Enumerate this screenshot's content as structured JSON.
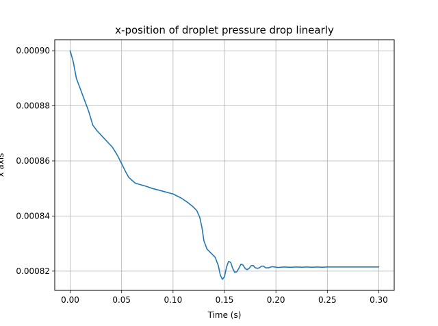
{
  "chart_data": {
    "type": "line",
    "title": "x-position of droplet pressure drop linearly",
    "xlabel": "Time (s)",
    "ylabel": "x axis",
    "xlim": [
      -0.015,
      0.315
    ],
    "ylim": [
      0.000813,
      0.000904
    ],
    "xticks": [
      0.0,
      0.05,
      0.1,
      0.15,
      0.2,
      0.25,
      0.3
    ],
    "xtick_labels": [
      "0.00",
      "0.05",
      "0.10",
      "0.15",
      "0.20",
      "0.25",
      "0.30"
    ],
    "yticks": [
      0.00082,
      0.00084,
      0.00086,
      0.00088,
      0.0009
    ],
    "ytick_labels": [
      "0.00082",
      "0.00084",
      "0.00086",
      "0.00088",
      "0.00090"
    ],
    "grid": true,
    "series": [
      {
        "color": "#1f77b4",
        "x": [
          0.0,
          0.003,
          0.006,
          0.009,
          0.013,
          0.018,
          0.022,
          0.026,
          0.031,
          0.036,
          0.041,
          0.046,
          0.05,
          0.054,
          0.057,
          0.06,
          0.063,
          0.067,
          0.072,
          0.08,
          0.09,
          0.1,
          0.108,
          0.114,
          0.119,
          0.123,
          0.126,
          0.128,
          0.13,
          0.133,
          0.137,
          0.141,
          0.144,
          0.146,
          0.148,
          0.15,
          0.152,
          0.154,
          0.156,
          0.158,
          0.16,
          0.162,
          0.164,
          0.166,
          0.168,
          0.17,
          0.172,
          0.174,
          0.176,
          0.178,
          0.18,
          0.182,
          0.184,
          0.186,
          0.188,
          0.19,
          0.193,
          0.196,
          0.199,
          0.202,
          0.205,
          0.208,
          0.212,
          0.216,
          0.22,
          0.225,
          0.23,
          0.235,
          0.24,
          0.245,
          0.25,
          0.26,
          0.27,
          0.28,
          0.29,
          0.3
        ],
        "y": [
          0.0009,
          0.000896,
          0.00089,
          0.000887,
          0.000883,
          0.000878,
          0.000873,
          0.000871,
          0.000869,
          0.000867,
          0.000865,
          0.000862,
          0.000859,
          0.000856,
          0.000854,
          0.000853,
          0.000852,
          0.0008515,
          0.000851,
          0.00085,
          0.000849,
          0.000848,
          0.0008465,
          0.000845,
          0.0008435,
          0.000842,
          0.0008395,
          0.000836,
          0.000831,
          0.000828,
          0.0008265,
          0.000825,
          0.000822,
          0.0008185,
          0.000817,
          0.000818,
          0.0008215,
          0.0008235,
          0.0008232,
          0.000821,
          0.0008195,
          0.0008198,
          0.000821,
          0.0008225,
          0.0008222,
          0.000821,
          0.0008205,
          0.000821,
          0.000822,
          0.000822,
          0.0008212,
          0.000821,
          0.0008212,
          0.0008218,
          0.0008218,
          0.0008212,
          0.0008212,
          0.0008216,
          0.0008215,
          0.0008213,
          0.0008214,
          0.0008215,
          0.0008214,
          0.0008214,
          0.0008215,
          0.0008214,
          0.0008215,
          0.0008214,
          0.0008215,
          0.0008214,
          0.0008215,
          0.0008215,
          0.0008215,
          0.0008215,
          0.0008215,
          0.0008215
        ]
      }
    ]
  }
}
